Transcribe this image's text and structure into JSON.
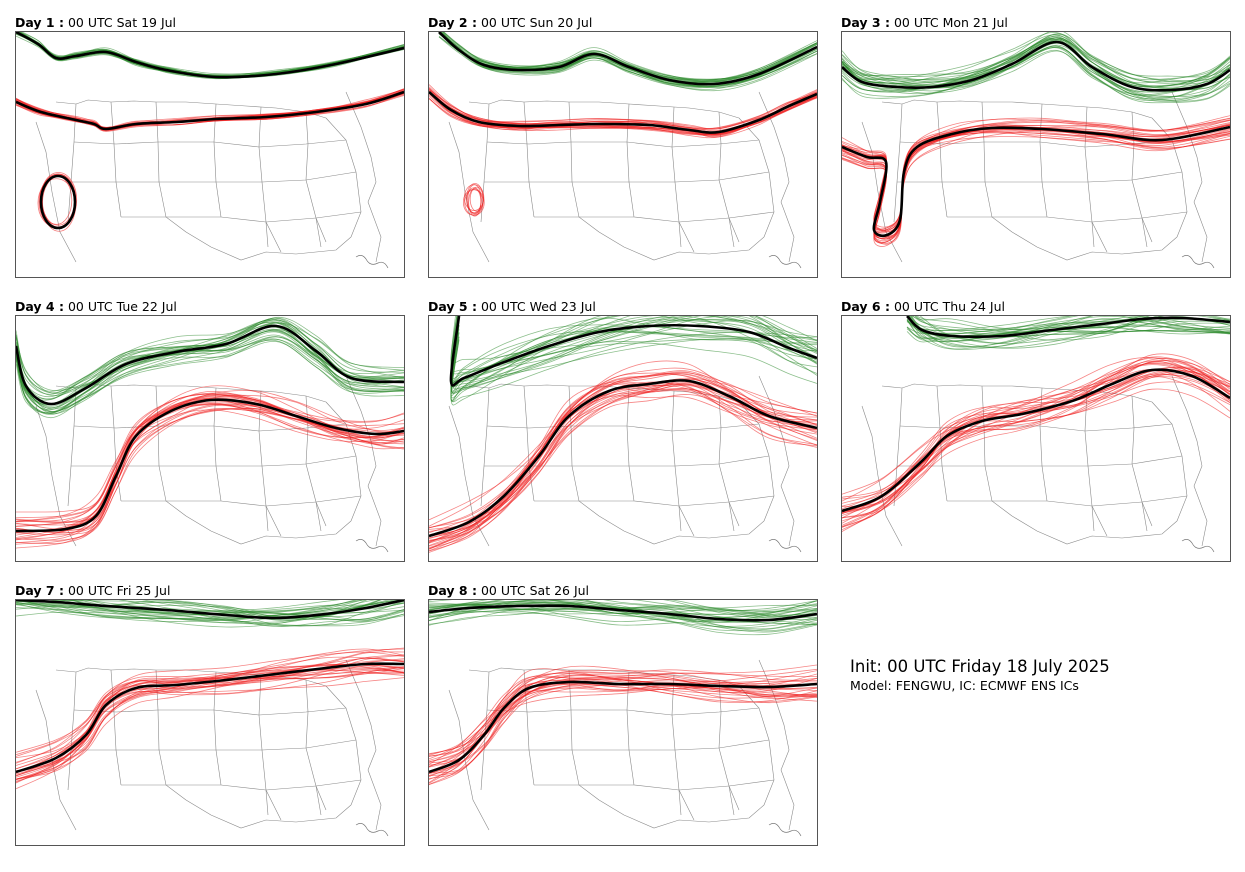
{
  "panels": [
    {
      "id": 1,
      "day_label": "Day 1 :",
      "valid": "00 UTC Sat 19 Jul"
    },
    {
      "id": 2,
      "day_label": "Day 2 :",
      "valid": "00 UTC Sun 20 Jul"
    },
    {
      "id": 3,
      "day_label": "Day 3 :",
      "valid": "00 UTC Mon 21 Jul"
    },
    {
      "id": 4,
      "day_label": "Day 4 :",
      "valid": "00 UTC Tue 22 Jul"
    },
    {
      "id": 5,
      "day_label": "Day 5 :",
      "valid": "00 UTC Wed 23 Jul"
    },
    {
      "id": 6,
      "day_label": "Day 6 :",
      "valid": "00 UTC Thu 24 Jul"
    },
    {
      "id": 7,
      "day_label": "Day 7 :",
      "valid": "00 UTC Fri 25 Jul"
    },
    {
      "id": 8,
      "day_label": "Day 8 :",
      "valid": "00 UTC Sat 26 Jul"
    }
  ],
  "info": {
    "title": "Init: 00 UTC Friday 18 July 2025",
    "model": "Model: FENGWU, IC: ECMWF ENS ICs"
  },
  "colors": {
    "north_contour": "#2e8b2e",
    "south_contour": "#ee2222",
    "ensemble_mean": "#000000",
    "borders": "#8a8a8a"
  }
}
